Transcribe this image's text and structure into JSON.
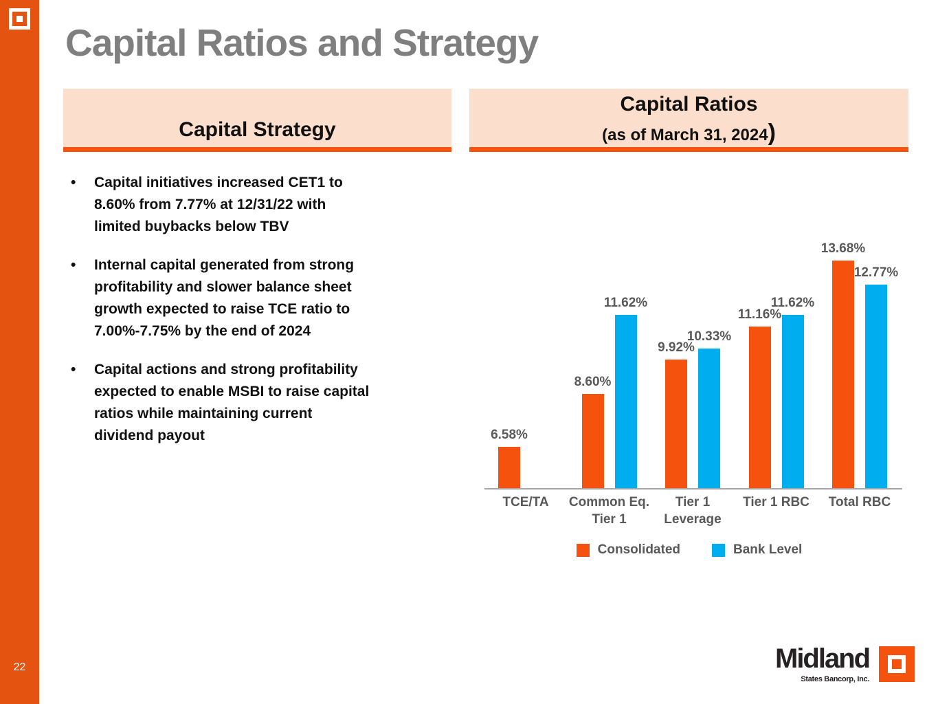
{
  "slide": {
    "title": "Capital Ratios and Strategy",
    "page_number": "22"
  },
  "left_panel": {
    "header": "Capital Strategy",
    "bullets": [
      [
        "Capital initiatives increased CET1 to",
        "8.60% from 7.77% at 12/31/22 with",
        "limited buybacks below TBV"
      ],
      [
        "Internal capital generated from strong",
        "profitability and slower balance sheet",
        "growth expected to raise TCE ratio to",
        "7.00%-7.75% by the end of 2024"
      ],
      [
        "Capital actions and strong profitability",
        "expected to enable MSBI to raise capital",
        "ratios while maintaining current",
        "dividend payout"
      ]
    ]
  },
  "right_panel": {
    "header_line1": "Capital Ratios",
    "header_line2": "(as of March 31, 2024",
    "header_line2_close_paren": ")"
  },
  "chart_data": {
    "type": "bar",
    "title": "Capital Ratios",
    "subtitle": "(as of March 31, 2024)",
    "categories": [
      [
        "TCE/TA"
      ],
      [
        "Common Eq.",
        "Tier 1"
      ],
      [
        "Tier 1",
        "Leverage"
      ],
      [
        "Tier 1 RBC"
      ],
      [
        "Total RBC"
      ]
    ],
    "series": [
      {
        "name": "Consolidated",
        "color": "#F4520D",
        "values": [
          6.58,
          8.6,
          9.92,
          11.16,
          13.68
        ],
        "labels": [
          "6.58%",
          "8.60%",
          "9.92%",
          "11.16%",
          "13.68%"
        ]
      },
      {
        "name": "Bank Level",
        "color": "#00AEEF",
        "values": [
          null,
          11.62,
          10.33,
          11.62,
          12.77
        ],
        "labels": [
          null,
          "11.62%",
          "10.33%",
          "11.62%",
          "12.77%"
        ]
      }
    ],
    "xlabel": "",
    "ylabel": "",
    "baseline_value": 5,
    "ylim": [
      5,
      15
    ],
    "grid": false,
    "y_axis_visible": false,
    "legend_position": "bottom"
  },
  "footer_logo": {
    "name": "Midland",
    "subtitle": "States Bancorp, Inc."
  },
  "colors": {
    "sidebar_orange": "#E4530F",
    "accent_orange": "#F4520D",
    "bar_blue": "#00AEEF",
    "header_bg": "#FBDECC",
    "title_gray": "#7F7F7F",
    "chart_text_gray": "#595959",
    "axis_line_gray": "#A6A6A6",
    "text_black": "#111111",
    "logo_ink": "#262223"
  }
}
